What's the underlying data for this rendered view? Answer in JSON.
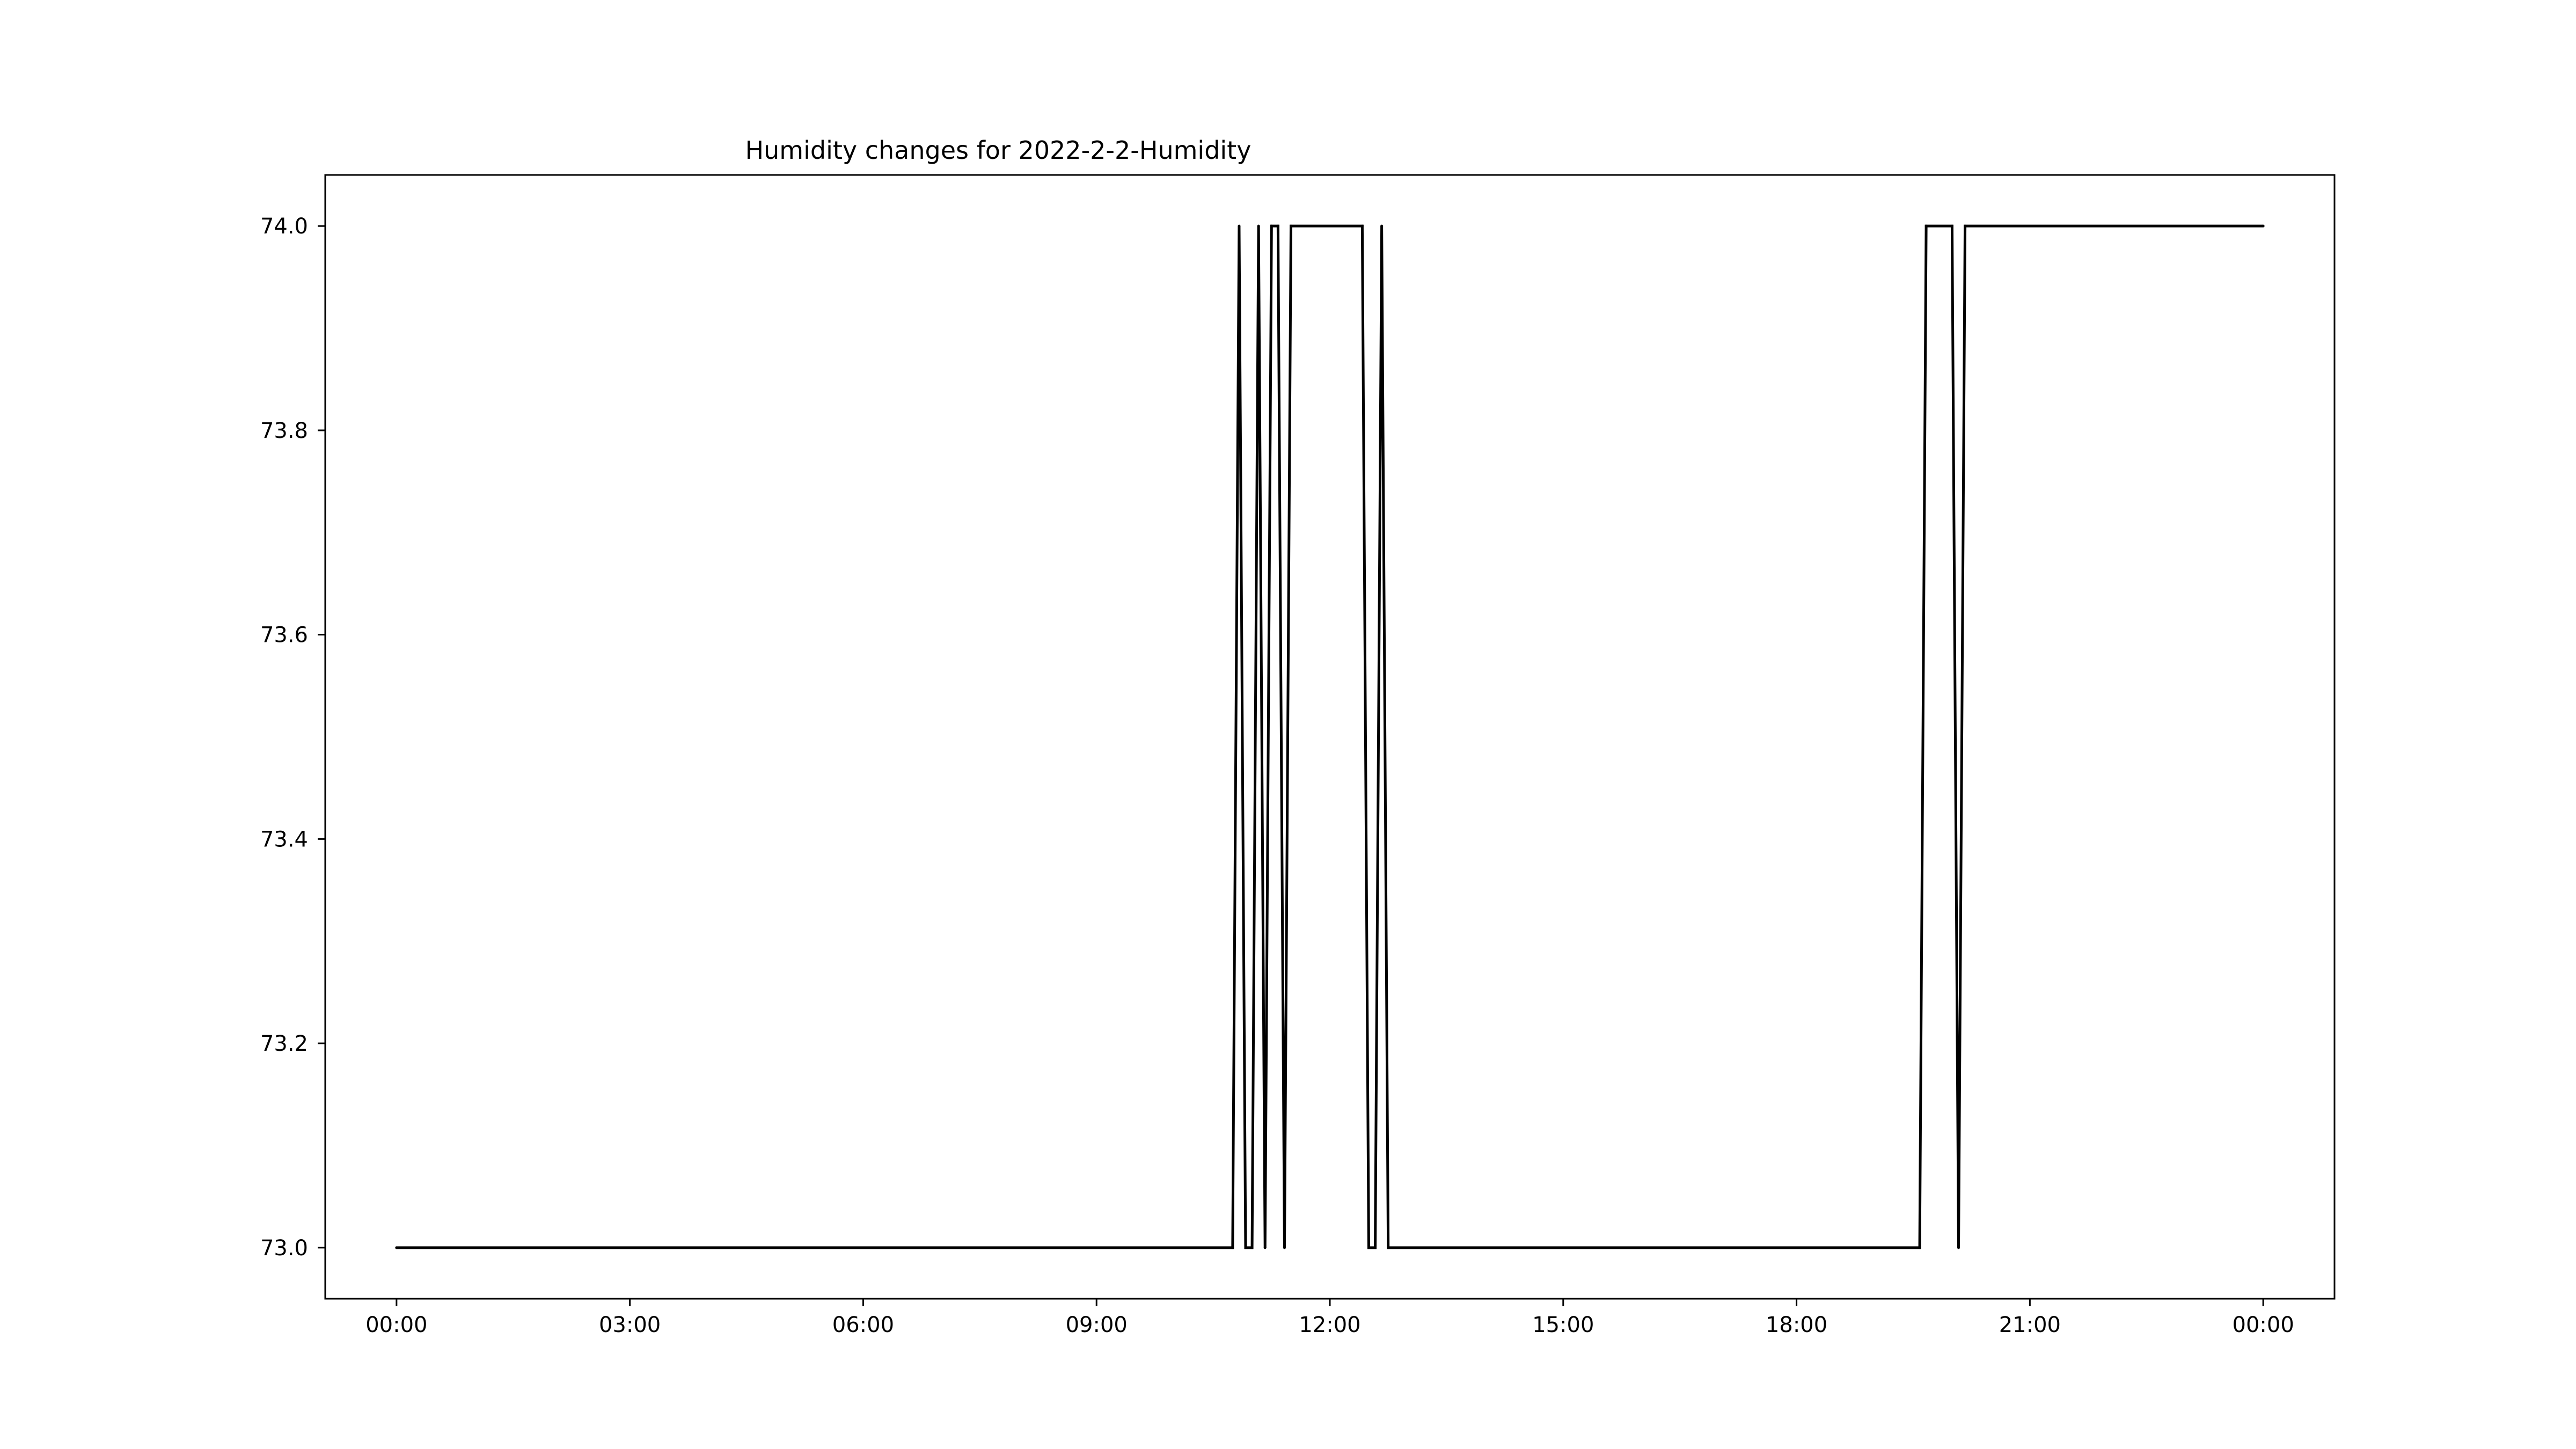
{
  "chart_data": {
    "type": "line",
    "title": "Humidity changes for 2022-2-2-Humidity",
    "xlabel": "",
    "ylabel": "",
    "xlim": [
      "2022-02-01 23:05",
      "2022-02-03 00:55"
    ],
    "ylim": [
      72.95,
      74.05
    ],
    "x_ticks": [
      "00:00",
      "03:00",
      "06:00",
      "09:00",
      "12:00",
      "15:00",
      "18:00",
      "21:00",
      "00:00"
    ],
    "y_ticks": [
      "73.0",
      "73.2",
      "73.4",
      "73.6",
      "73.8",
      "74.0"
    ],
    "grid": false,
    "legend": "none",
    "line_color": "#000000",
    "series": [
      {
        "values": [
          {
            "x": "2022-02-02 00:00",
            "y": 73
          },
          {
            "x": "2022-02-02 10:45",
            "y": 73
          },
          {
            "x": "2022-02-02 10:50",
            "y": 74
          },
          {
            "x": "2022-02-02 10:55",
            "y": 73
          },
          {
            "x": "2022-02-02 11:00",
            "y": 73
          },
          {
            "x": "2022-02-02 11:05",
            "y": 74
          },
          {
            "x": "2022-02-02 11:10",
            "y": 73
          },
          {
            "x": "2022-02-02 11:15",
            "y": 74
          },
          {
            "x": "2022-02-02 11:20",
            "y": 74
          },
          {
            "x": "2022-02-02 11:25",
            "y": 73
          },
          {
            "x": "2022-02-02 11:30",
            "y": 74
          },
          {
            "x": "2022-02-02 12:25",
            "y": 74
          },
          {
            "x": "2022-02-02 12:30",
            "y": 73
          },
          {
            "x": "2022-02-02 12:35",
            "y": 73
          },
          {
            "x": "2022-02-02 12:40",
            "y": 74
          },
          {
            "x": "2022-02-02 12:45",
            "y": 73
          },
          {
            "x": "2022-02-02 19:35",
            "y": 73
          },
          {
            "x": "2022-02-02 19:40",
            "y": 74
          },
          {
            "x": "2022-02-02 20:00",
            "y": 74
          },
          {
            "x": "2022-02-02 20:05",
            "y": 73
          },
          {
            "x": "2022-02-02 20:10",
            "y": 74
          },
          {
            "x": "2022-02-03 00:00",
            "y": 74
          }
        ]
      }
    ]
  }
}
